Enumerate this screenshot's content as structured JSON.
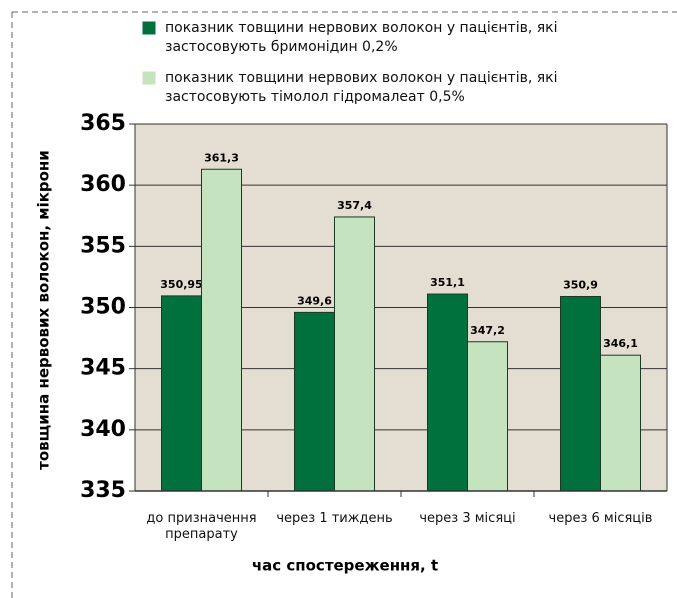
{
  "chart_data": {
    "type": "bar",
    "y_label": "товщина нервових волокон, мікрони",
    "x_label": "час спостереження, t",
    "categories": [
      "до призначення препарату",
      "через 1 тиждень",
      "через 3 місяці",
      "через 6 місяців"
    ],
    "series": [
      {
        "name": "показник товщини нервових волокон у пацієнтів, які застосовують бримонідин 0,2%",
        "color": "#00703c",
        "values": [
          350.95,
          349.6,
          351.1,
          350.9
        ],
        "value_labels": [
          "350,95",
          "349,6",
          "351,1",
          "350,9"
        ]
      },
      {
        "name": "показник товщини нервових волокон у пацієнтів, які застосовують тімолол гідромалеат 0,5%",
        "color": "#c5e3be",
        "values": [
          361.3,
          357.4,
          347.2,
          346.1
        ],
        "value_labels": [
          "361,3",
          "357,4",
          "347,2",
          "346,1"
        ]
      }
    ],
    "ylim": [
      335,
      365
    ],
    "yticks": [
      335,
      340,
      345,
      350,
      355,
      360,
      365
    ],
    "grid": true
  }
}
